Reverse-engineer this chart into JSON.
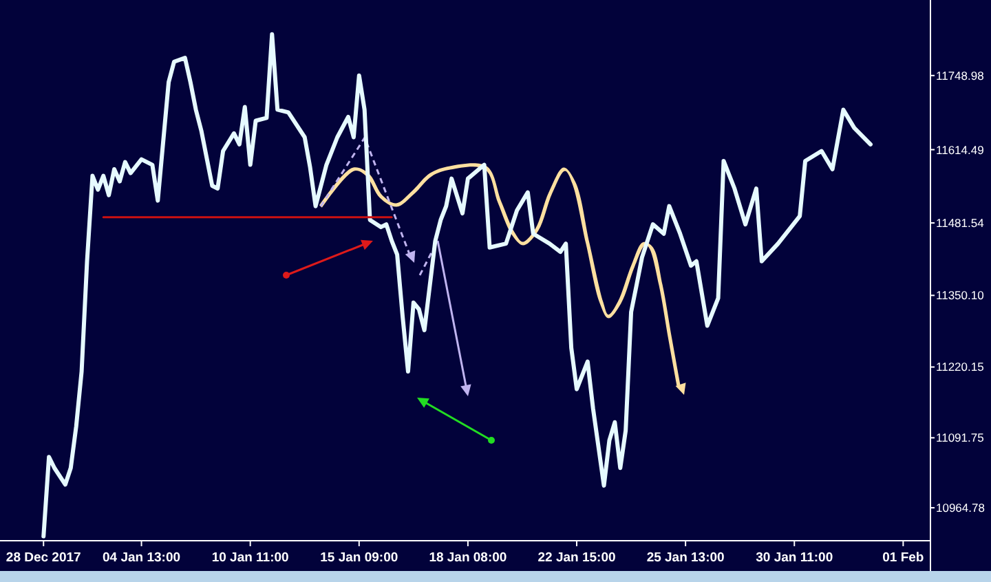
{
  "chart_data": {
    "type": "line",
    "ylim": [
      10905,
      11886
    ],
    "categories": [
      null,
      null,
      null,
      null,
      null,
      null,
      null,
      null,
      "28 Dec 2017",
      null,
      null,
      null,
      null,
      null,
      null,
      null,
      null,
      null,
      null,
      null,
      null,
      null,
      null,
      null,
      null,
      null,
      "04 Jan 13:00",
      null,
      null,
      null,
      null,
      null,
      null,
      null,
      null,
      null,
      null,
      null,
      null,
      null,
      null,
      null,
      null,
      null,
      null,
      null,
      "10 Jan 11:00",
      null,
      null,
      null,
      null,
      null,
      null,
      null,
      null,
      null,
      null,
      null,
      null,
      null,
      null,
      null,
      null,
      null,
      null,
      null,
      "15 Jan 09:00",
      null,
      null,
      null,
      null,
      null,
      null,
      null,
      null,
      null,
      null,
      null,
      null,
      null,
      null,
      null,
      null,
      null,
      null,
      null,
      "18 Jan 08:00",
      null,
      null,
      null,
      null,
      null,
      null,
      null,
      null,
      null,
      null,
      null,
      null,
      null,
      null,
      null,
      null,
      null,
      null,
      null,
      "22 Jan 15:00",
      null,
      null,
      null,
      null,
      null,
      null,
      null,
      null,
      null,
      null,
      null,
      null,
      null,
      null,
      null,
      null,
      null,
      null,
      null,
      "25 Jan 13:00",
      null,
      null,
      null,
      null,
      null,
      null,
      null,
      null,
      null,
      null,
      null,
      null,
      null,
      null,
      null,
      null,
      null,
      null,
      null,
      "30 Jan 11:00",
      null,
      null,
      null,
      null,
      null,
      null,
      null,
      null,
      null,
      null,
      null,
      null,
      null,
      null,
      null,
      null,
      null,
      null,
      null,
      "01 Feb",
      null,
      null,
      null,
      null
    ],
    "yticks": [
      {
        "value": 10964.78,
        "label": "10964.78"
      },
      {
        "value": 11091.75,
        "label": "11091.75"
      },
      {
        "value": 11220.15,
        "label": "11220.15"
      },
      {
        "value": 11350.1,
        "label": "11350.10"
      },
      {
        "value": 11481.54,
        "label": "11481.54"
      },
      {
        "value": 11614.49,
        "label": "11614.49"
      },
      {
        "value": 11748.98,
        "label": "11748.98"
      }
    ],
    "grid": false,
    "series": [
      {
        "color": "#e6faff",
        "values": [
          null,
          null,
          null,
          null,
          null,
          null,
          null,
          null,
          10913,
          11057,
          11037,
          null,
          11007,
          11037,
          11112,
          11212,
          11412,
          11567,
          11542,
          11567,
          11532,
          11579,
          11557,
          11592,
          11572,
          null,
          11597,
          null,
          11587,
          11522,
          null,
          11737,
          11774,
          null,
          11781,
          11737,
          11687,
          11649,
          null,
          11549,
          11544,
          11612,
          null,
          11644,
          11624,
          11692,
          11587,
          11667,
          null,
          11672,
          11824,
          11687,
          null,
          11682,
          11667,
          null,
          11637,
          11582,
          11512,
          null,
          11587,
          null,
          11637,
          null,
          11674,
          11637,
          11749,
          11687,
          11487,
          null,
          11474,
          11479,
          11449,
          11424,
          11312,
          11212,
          11337,
          11325,
          11287,
          null,
          11449,
          11487,
          11512,
          11562,
          null,
          11499,
          11562,
          null,
          null,
          11587,
          11437,
          null,
          null,
          11444,
          null,
          11504,
          null,
          11537,
          11462,
          null,
          null,
          11444,
          null,
          11429,
          11444,
          11255,
          11180,
          null,
          11230,
          11145,
          null,
          11005,
          11087,
          11120,
          11037,
          11105,
          11320,
          11369,
          11419,
          null,
          11479,
          null,
          11462,
          11512,
          null,
          11462,
          null,
          11404,
          11412,
          null,
          11295,
          null,
          11345,
          11594,
          null,
          11544,
          null,
          11479,
          null,
          11544,
          11412,
          null,
          null,
          11444,
          null,
          null,
          null,
          11494,
          11594,
          null,
          null,
          11612,
          null,
          11579,
          null,
          11687,
          null,
          11654,
          null,
          null,
          11624,
          null,
          null,
          null,
          null,
          null,
          null,
          null,
          null,
          null,
          null
        ]
      },
      {
        "color": "#cc1111",
        "values": [
          null,
          null,
          null,
          null,
          null,
          null,
          null,
          null,
          null,
          null,
          null,
          null,
          null,
          null,
          null,
          null,
          null,
          null,
          null,
          11492,
          null,
          null,
          null,
          null,
          null,
          null,
          null,
          null,
          null,
          null,
          null,
          null,
          null,
          null,
          null,
          null,
          null,
          null,
          null,
          null,
          null,
          null,
          null,
          null,
          null,
          null,
          null,
          null,
          null,
          null,
          null,
          null,
          null,
          null,
          null,
          null,
          null,
          null,
          null,
          null,
          null,
          null,
          null,
          null,
          null,
          null,
          null,
          null,
          null,
          null,
          null,
          null,
          11492,
          null,
          null,
          null,
          null,
          null,
          null,
          null,
          null,
          null,
          null,
          null,
          null,
          null,
          null,
          null,
          null,
          null,
          null,
          null,
          null,
          null,
          null,
          null,
          null,
          null,
          null,
          null,
          null,
          null,
          null,
          null,
          null,
          null,
          null,
          null,
          null,
          null,
          null,
          null,
          null,
          null,
          null,
          null,
          null,
          null,
          null,
          null,
          null,
          null,
          null,
          null,
          null,
          null,
          null,
          null,
          null,
          null,
          null,
          null,
          null,
          null,
          null,
          null,
          null,
          null,
          null,
          null,
          null,
          null,
          null,
          null,
          null,
          null,
          null,
          null,
          null,
          null,
          null,
          null,
          null,
          null,
          null,
          null,
          null,
          null,
          null,
          null,
          null,
          null,
          null,
          null,
          null,
          null,
          null,
          null,
          null,
          null,
          null
        ]
      }
    ]
  }
}
